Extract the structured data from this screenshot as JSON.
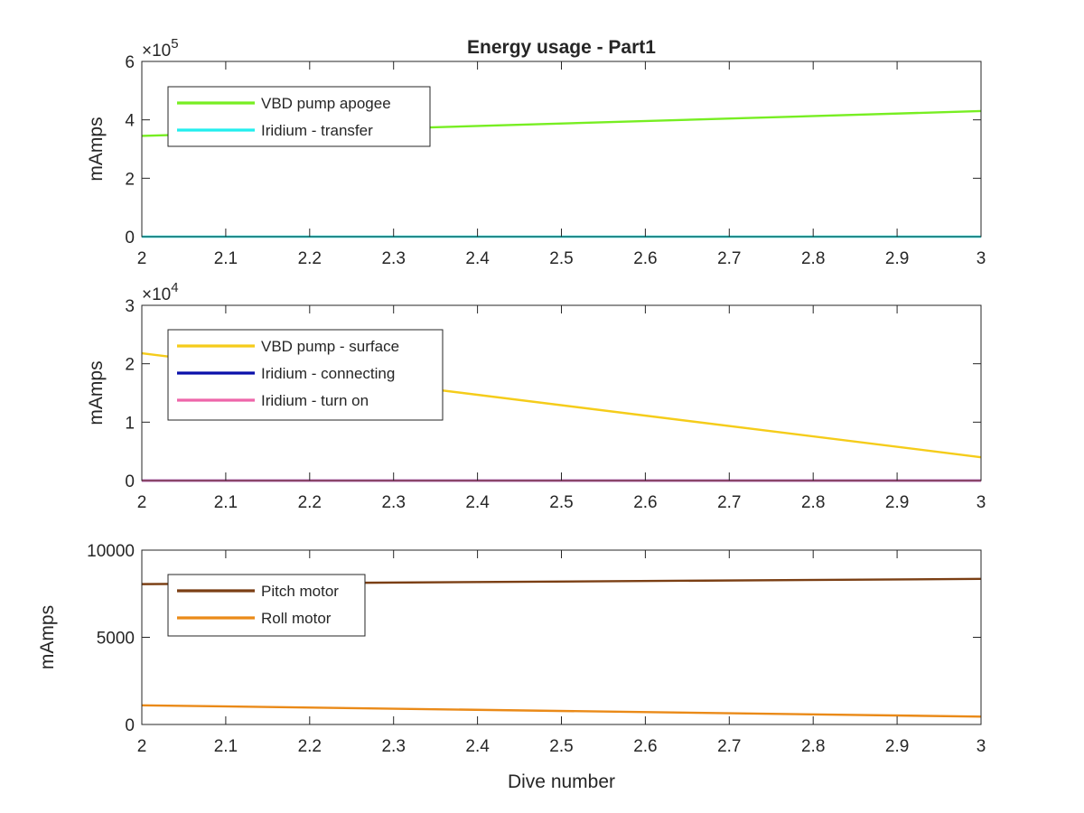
{
  "chart_data": [
    {
      "type": "line",
      "title": "Energy usage - Part1",
      "xlabel": "",
      "ylabel": "mAmps",
      "exponent_label": "×10",
      "exponent_power": "5",
      "xlim": [
        2,
        3
      ],
      "ylim": [
        0,
        6
      ],
      "xticks": [
        "2",
        "2.1",
        "2.2",
        "2.3",
        "2.4",
        "2.5",
        "2.6",
        "2.7",
        "2.8",
        "2.9",
        "3"
      ],
      "yticks": [
        "0",
        "2",
        "4",
        "6"
      ],
      "legend_position": "top-left",
      "series": [
        {
          "name": "VBD pump apogee",
          "color": "#77ee22",
          "x": [
            2,
            3
          ],
          "values": [
            3.45,
            4.3
          ]
        },
        {
          "name": "Iridium - transfer",
          "color": "#22eeee",
          "x": [
            2,
            3
          ],
          "values": [
            0,
            0
          ]
        }
      ]
    },
    {
      "type": "line",
      "title": "",
      "xlabel": "",
      "ylabel": "mAmps",
      "exponent_label": "×10",
      "exponent_power": "4",
      "xlim": [
        2,
        3
      ],
      "ylim": [
        0,
        3
      ],
      "xticks": [
        "2",
        "2.1",
        "2.2",
        "2.3",
        "2.4",
        "2.5",
        "2.6",
        "2.7",
        "2.8",
        "2.9",
        "3"
      ],
      "yticks": [
        "0",
        "1",
        "2",
        "3"
      ],
      "legend_position": "top-left",
      "series": [
        {
          "name": "VBD pump - surface",
          "color": "#f5cc1a",
          "x": [
            2,
            3
          ],
          "values": [
            2.18,
            0.4
          ]
        },
        {
          "name": "Iridium - connecting",
          "color": "#0a10aa",
          "x": [
            2,
            3
          ],
          "values": [
            0,
            0
          ]
        },
        {
          "name": "Iridium - turn on",
          "color": "#ee66aa",
          "x": [
            2,
            3
          ],
          "values": [
            0,
            0
          ]
        }
      ]
    },
    {
      "type": "line",
      "title": "",
      "xlabel": "Dive number",
      "ylabel": "mAmps",
      "exponent_label": "",
      "exponent_power": "",
      "xlim": [
        2,
        3
      ],
      "ylim": [
        0,
        10000
      ],
      "xticks": [
        "2",
        "2.1",
        "2.2",
        "2.3",
        "2.4",
        "2.5",
        "2.6",
        "2.7",
        "2.8",
        "2.9",
        "3"
      ],
      "yticks": [
        "0",
        "5000",
        "10000"
      ],
      "legend_position": "top-left",
      "series": [
        {
          "name": "Pitch motor",
          "color": "#7b3f14",
          "x": [
            2,
            3
          ],
          "values": [
            8050,
            8350
          ]
        },
        {
          "name": "Roll motor",
          "color": "#ea8a18",
          "x": [
            2,
            3
          ],
          "values": [
            1100,
            450
          ]
        }
      ]
    }
  ]
}
